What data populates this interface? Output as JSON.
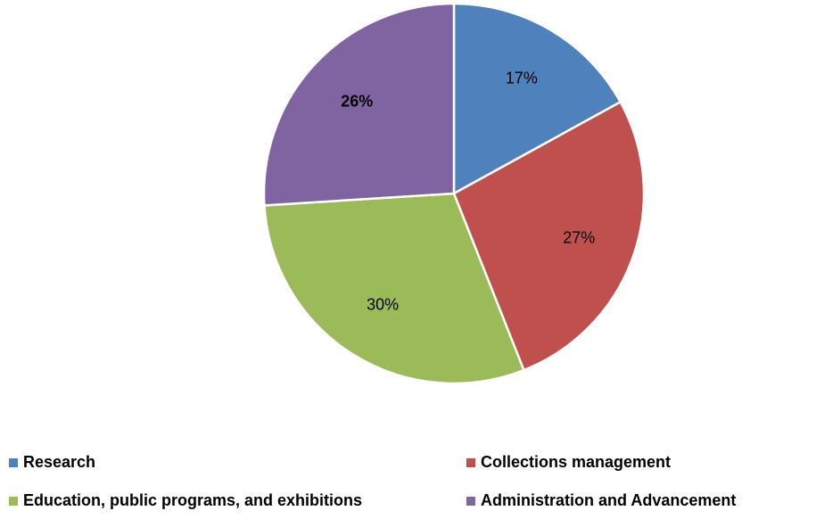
{
  "chart_data": {
    "type": "pie",
    "categories": [
      "Research",
      "Collections management",
      "Education, public programs, and exhibitions",
      "Administration and Advancement"
    ],
    "values": [
      17,
      27,
      30,
      26
    ],
    "value_labels": [
      "17%",
      "27%",
      "30%",
      "26%"
    ],
    "value_label_bold": [
      false,
      false,
      false,
      true
    ],
    "colors": [
      "#4f81bd",
      "#c0504d",
      "#9bbb59",
      "#8064a2"
    ],
    "legend": "bottom"
  }
}
